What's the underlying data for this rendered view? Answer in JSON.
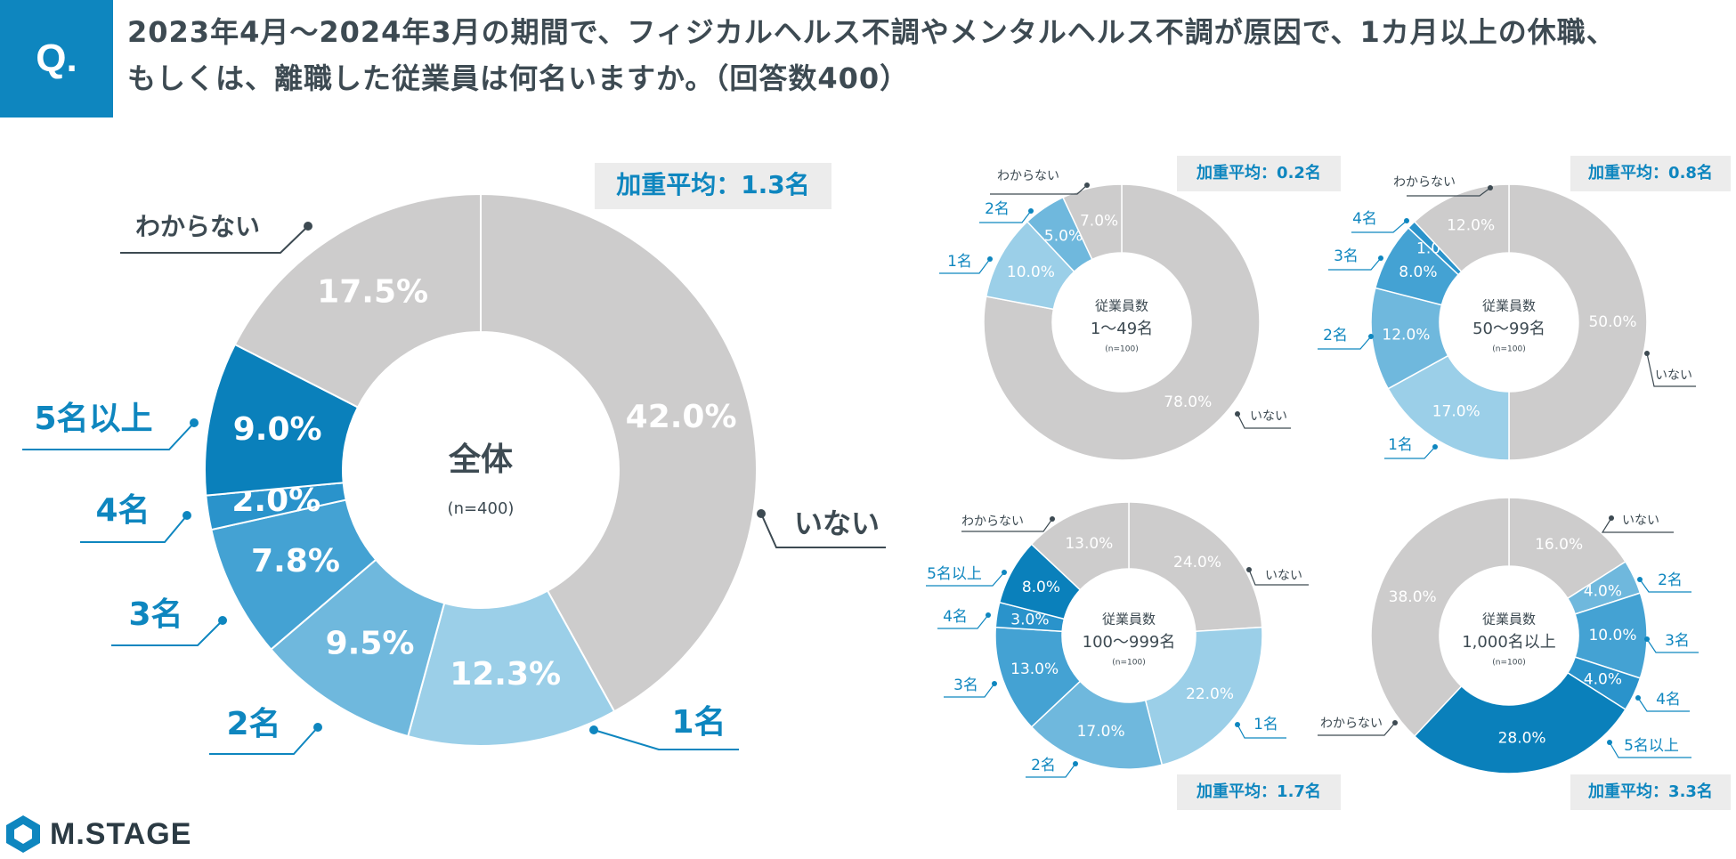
{
  "question": {
    "badge": "Q.",
    "line1": "2023年4月～2024年3月の期間で、フィジカルヘルス不調やメンタルヘルス不調が原因で、1カ月以上の休職、",
    "line2": "もしくは、離職した従業員は何名いますか。（回答数400）"
  },
  "logo": {
    "text": "M.STAGE",
    "icon": "hexagon-logo-icon"
  },
  "colors": {
    "いない": "#cdcccc",
    "1名": "#9bcfe8",
    "2名": "#6fb8dd",
    "3名": "#44a2d3",
    "4名": "#2a93cb",
    "5名以上": "#0a80bb",
    "わからない": "#cdcccc",
    "label_blue": "#0e86bf",
    "label_gray": "#3d4a52"
  },
  "chart_data": [
    {
      "type": "pie",
      "id": "total",
      "center_title": "全体",
      "center_sub": "(n=400)",
      "average_label": "加重平均：1.3名",
      "categories": [
        "いない",
        "1名",
        "2名",
        "3名",
        "4名",
        "5名以上",
        "わからない"
      ],
      "values": [
        42.0,
        12.3,
        9.5,
        7.8,
        2.0,
        9.0,
        17.5
      ],
      "value_labels": [
        "42.0%",
        "12.3%",
        "9.5%",
        "7.8%",
        "2.0%",
        "9.0%",
        "17.5%"
      ]
    },
    {
      "type": "pie",
      "id": "size-1-49",
      "center_top": "従業員数",
      "center_title": "1～49名",
      "center_sub": "(n=100)",
      "average_label": "加重平均：0.2名",
      "categories": [
        "いない",
        "1名",
        "2名",
        "わからない"
      ],
      "values": [
        78.0,
        10.0,
        5.0,
        7.0
      ],
      "value_labels": [
        "78.0%",
        "10.0%",
        "5.0%",
        "7.0%"
      ]
    },
    {
      "type": "pie",
      "id": "size-50-99",
      "center_top": "従業員数",
      "center_title": "50～99名",
      "center_sub": "(n=100)",
      "average_label": "加重平均：0.8名",
      "categories": [
        "いない",
        "1名",
        "2名",
        "3名",
        "4名",
        "わからない"
      ],
      "values": [
        50.0,
        17.0,
        12.0,
        8.0,
        1.0,
        12.0
      ],
      "value_labels": [
        "50.0%",
        "17.0%",
        "12.0%",
        "8.0%",
        "1.0%",
        "12.0%"
      ]
    },
    {
      "type": "pie",
      "id": "size-100-999",
      "center_top": "従業員数",
      "center_title": "100～999名",
      "center_sub": "(n=100)",
      "average_label": "加重平均：1.7名",
      "categories": [
        "いない",
        "1名",
        "2名",
        "3名",
        "4名",
        "5名以上",
        "わからない"
      ],
      "values": [
        24.0,
        22.0,
        17.0,
        13.0,
        3.0,
        8.0,
        13.0
      ],
      "value_labels": [
        "24.0%",
        "22.0%",
        "17.0%",
        "13.0%",
        "3.0%",
        "8.0%",
        "13.0%"
      ]
    },
    {
      "type": "pie",
      "id": "size-1000-plus",
      "center_top": "従業員数",
      "center_title": "1,000名以上",
      "center_sub": "(n=100)",
      "average_label": "加重平均：3.3名",
      "categories": [
        "いない",
        "2名",
        "3名",
        "4名",
        "5名以上",
        "わからない"
      ],
      "values": [
        16.0,
        4.0,
        10.0,
        4.0,
        28.0,
        38.0
      ],
      "value_labels": [
        "16.0%",
        "4.0%",
        "10.0%",
        "4.0%",
        "28.0%",
        "38.0%"
      ]
    }
  ]
}
